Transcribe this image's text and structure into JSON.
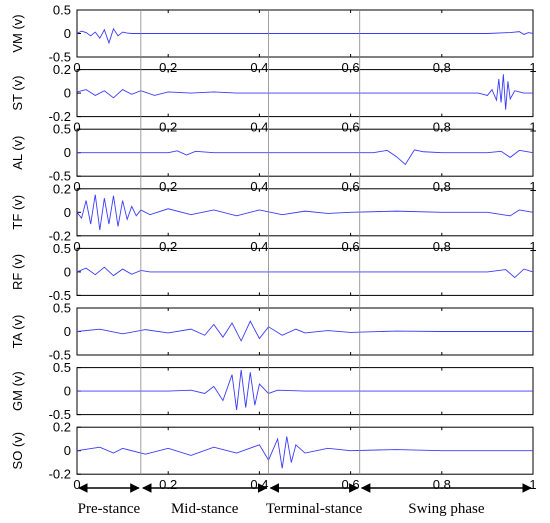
{
  "chart_data": [
    {
      "type": "line",
      "ylabel": "VM (v)",
      "yticks": [
        0.5,
        0,
        -0.5
      ],
      "ylim": [
        -0.5,
        0.5
      ],
      "xlim": [
        0,
        1
      ],
      "xticks": [
        0,
        0.2,
        0.4,
        0.6,
        0.8,
        1
      ],
      "show_xticklabels": true,
      "series": [
        {
          "x": [
            0,
            0.01,
            0.02,
            0.03,
            0.04,
            0.05,
            0.06,
            0.07,
            0.08,
            0.09,
            0.1,
            0.11,
            0.12,
            0.14,
            0.9,
            0.95,
            0.97,
            0.98,
            0.99,
            1
          ],
          "y": [
            0,
            0.05,
            0.02,
            -0.05,
            0.03,
            -0.1,
            0.08,
            -0.2,
            0.1,
            -0.05,
            0.03,
            0.01,
            0,
            0,
            0,
            0.02,
            0.04,
            -0.02,
            0.02,
            0
          ]
        }
      ]
    },
    {
      "type": "line",
      "ylabel": "ST (v)",
      "yticks": [
        0.2,
        0,
        -0.2
      ],
      "ylim": [
        -0.2,
        0.2
      ],
      "xlim": [
        0,
        1
      ],
      "xticks": [
        0,
        0.2,
        0.4,
        0.6,
        0.8,
        1
      ],
      "show_xticklabels": true,
      "series": [
        {
          "x": [
            0,
            0.02,
            0.04,
            0.06,
            0.08,
            0.1,
            0.12,
            0.14,
            0.17,
            0.2,
            0.25,
            0.3,
            0.35,
            0.4,
            0.5,
            0.6,
            0.7,
            0.8,
            0.88,
            0.9,
            0.91,
            0.92,
            0.925,
            0.93,
            0.935,
            0.94,
            0.945,
            0.95,
            0.96,
            0.97,
            0.98,
            1
          ],
          "y": [
            0.01,
            0.03,
            -0.02,
            0.02,
            -0.04,
            0.03,
            -0.01,
            0.02,
            -0.02,
            0.01,
            0,
            0.01,
            0,
            0,
            0,
            0,
            0,
            0,
            0,
            -0.02,
            0.03,
            -0.06,
            0.12,
            -0.08,
            0.16,
            -0.14,
            0.1,
            -0.05,
            0.02,
            0.01,
            0,
            0
          ]
        }
      ]
    },
    {
      "type": "line",
      "ylabel": "AL (v)",
      "yticks": [
        0.5,
        0,
        -0.5
      ],
      "ylim": [
        -0.5,
        0.5
      ],
      "xlim": [
        0,
        1
      ],
      "xticks": [
        0,
        0.2,
        0.4,
        0.6,
        0.8,
        1
      ],
      "show_xticklabels": true,
      "series": [
        {
          "x": [
            0,
            0.1,
            0.2,
            0.22,
            0.24,
            0.26,
            0.3,
            0.5,
            0.65,
            0.68,
            0.7,
            0.72,
            0.74,
            0.76,
            0.8,
            0.9,
            0.93,
            0.95,
            0.97,
            1
          ],
          "y": [
            0,
            0,
            0,
            0.04,
            -0.05,
            0.03,
            0,
            0,
            0,
            0.05,
            -0.08,
            -0.25,
            0.06,
            0.02,
            0,
            0,
            0.03,
            -0.1,
            0.05,
            0
          ]
        }
      ]
    },
    {
      "type": "line",
      "ylabel": "TF (v)",
      "yticks": [
        0.2,
        0,
        -0.2
      ],
      "ylim": [
        -0.2,
        0.2
      ],
      "xlim": [
        0,
        1
      ],
      "xticks": [
        0,
        0.2,
        0.4,
        0.6,
        0.8,
        1
      ],
      "show_xticklabels": true,
      "series": [
        {
          "x": [
            0,
            0.01,
            0.02,
            0.03,
            0.04,
            0.05,
            0.06,
            0.07,
            0.08,
            0.09,
            0.1,
            0.11,
            0.12,
            0.13,
            0.14,
            0.16,
            0.2,
            0.25,
            0.3,
            0.35,
            0.4,
            0.45,
            0.5,
            0.55,
            0.6,
            0.7,
            0.8,
            0.9,
            0.95,
            0.97,
            1
          ],
          "y": [
            0,
            -0.05,
            0.1,
            -0.1,
            0.15,
            -0.15,
            0.12,
            -0.1,
            0.14,
            -0.12,
            0.1,
            -0.06,
            0.05,
            -0.03,
            0.02,
            -0.02,
            0.03,
            -0.02,
            0.02,
            -0.03,
            0.02,
            -0.02,
            0.01,
            -0.01,
            0,
            0.01,
            0,
            0,
            -0.03,
            0.02,
            0
          ]
        }
      ]
    },
    {
      "type": "line",
      "ylabel": "RF (v)",
      "yticks": [
        0.5,
        0,
        -0.5
      ],
      "ylim": [
        -0.5,
        0.5
      ],
      "xlim": [
        0,
        1
      ],
      "xticks": [
        0,
        0.2,
        0.4,
        0.6,
        0.8,
        1
      ],
      "show_xticklabels": false,
      "series": [
        {
          "x": [
            0,
            0.02,
            0.04,
            0.06,
            0.08,
            0.1,
            0.12,
            0.14,
            0.16,
            0.2,
            0.5,
            0.9,
            0.94,
            0.96,
            0.98,
            1
          ],
          "y": [
            0,
            0.08,
            -0.06,
            0.1,
            -0.08,
            0.06,
            -0.05,
            0.03,
            0,
            0,
            0,
            0,
            0.05,
            -0.12,
            0.06,
            0
          ]
        }
      ]
    },
    {
      "type": "line",
      "ylabel": "TA (v)",
      "yticks": [
        0.5,
        0,
        -0.5
      ],
      "ylim": [
        -0.5,
        0.5
      ],
      "xlim": [
        0,
        1
      ],
      "xticks": [
        0,
        0.2,
        0.4,
        0.6,
        0.8,
        1
      ],
      "show_xticklabels": false,
      "series": [
        {
          "x": [
            0,
            0.05,
            0.1,
            0.15,
            0.2,
            0.25,
            0.28,
            0.3,
            0.32,
            0.34,
            0.36,
            0.38,
            0.4,
            0.42,
            0.45,
            0.48,
            0.5,
            0.55,
            0.6,
            0.7,
            0.8,
            0.9,
            1
          ],
          "y": [
            0,
            0.05,
            -0.05,
            0.04,
            -0.03,
            0.05,
            -0.08,
            0.15,
            -0.12,
            0.18,
            -0.2,
            0.22,
            -0.15,
            0.1,
            -0.08,
            0.05,
            -0.03,
            0.02,
            -0.02,
            0.01,
            0,
            0,
            0
          ]
        }
      ]
    },
    {
      "type": "line",
      "ylabel": "GM (v)",
      "yticks": [
        0.5,
        0,
        -0.5
      ],
      "ylim": [
        -0.5,
        0.5
      ],
      "xlim": [
        0,
        1
      ],
      "xticks": [
        0,
        0.2,
        0.4,
        0.6,
        0.8,
        1
      ],
      "show_xticklabels": false,
      "series": [
        {
          "x": [
            0,
            0.2,
            0.25,
            0.28,
            0.3,
            0.32,
            0.34,
            0.35,
            0.36,
            0.37,
            0.38,
            0.39,
            0.4,
            0.42,
            0.44,
            0.5,
            1
          ],
          "y": [
            0,
            0,
            0.02,
            -0.05,
            0.1,
            -0.2,
            0.35,
            -0.4,
            0.45,
            -0.35,
            0.4,
            -0.3,
            0.15,
            -0.05,
            0.02,
            0,
            0
          ]
        }
      ]
    },
    {
      "type": "line",
      "ylabel": "SO (v)",
      "yticks": [
        0.2,
        0,
        -0.2
      ],
      "ylim": [
        -0.2,
        0.2
      ],
      "xlim": [
        0,
        1
      ],
      "xticks": [
        0,
        0.2,
        0.4,
        0.6,
        0.8,
        1
      ],
      "show_xticklabels": true,
      "series": [
        {
          "x": [
            0,
            0.05,
            0.08,
            0.1,
            0.15,
            0.2,
            0.25,
            0.3,
            0.35,
            0.4,
            0.42,
            0.44,
            0.45,
            0.46,
            0.47,
            0.48,
            0.5,
            0.55,
            0.6,
            0.7,
            0.8,
            0.9,
            1
          ],
          "y": [
            0,
            0.03,
            -0.02,
            0.02,
            -0.03,
            0.02,
            -0.04,
            0.03,
            -0.02,
            0.05,
            -0.08,
            0.1,
            -0.15,
            0.12,
            -0.1,
            0.05,
            -0.02,
            0.02,
            0,
            0.01,
            0,
            0,
            0
          ]
        }
      ]
    }
  ],
  "phases": [
    {
      "label": "Pre-stance",
      "start": 0,
      "end": 0.14
    },
    {
      "label": "Mid-stance",
      "start": 0.14,
      "end": 0.42
    },
    {
      "label": "Terminal-stance",
      "start": 0.42,
      "end": 0.62
    },
    {
      "label": "Swing phase",
      "start": 0.62,
      "end": 1
    }
  ],
  "phase_boundaries": [
    0.14,
    0.42,
    0.62
  ],
  "colors": {
    "line": "#3b3bff",
    "axis": "#000000",
    "divider": "#888888"
  }
}
